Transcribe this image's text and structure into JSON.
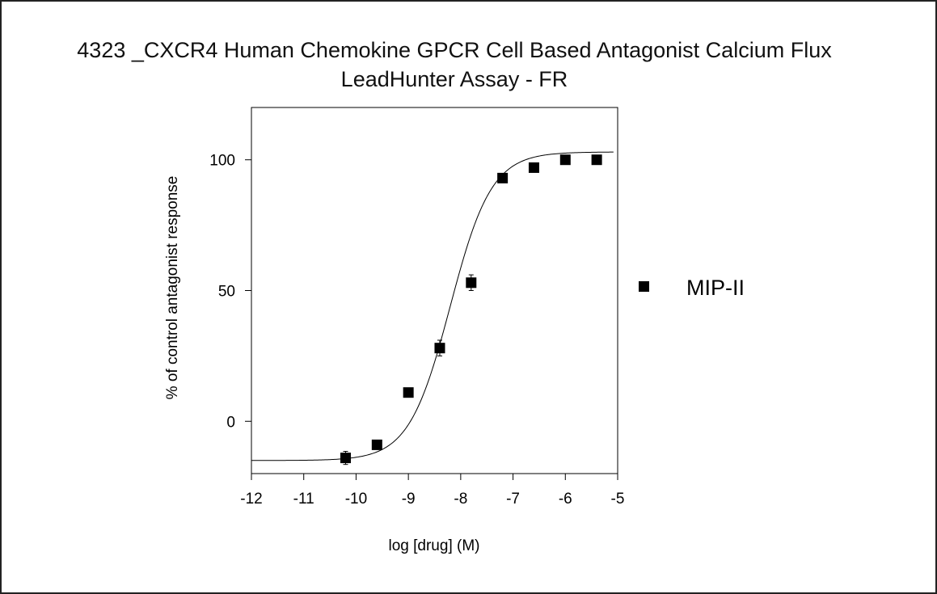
{
  "chart_data": {
    "type": "scatter",
    "title_lines": [
      "4323 _CXCR4 Human Chemokine GPCR Cell Based Antagonist Calcium Flux",
      "LeadHunter Assay - FR"
    ],
    "xlabel": "log [drug] (M)",
    "ylabel": "% of control antagonist response",
    "xlim": [
      -12,
      -5
    ],
    "ylim": [
      -20,
      120
    ],
    "x_ticks": [
      "-12",
      "-11",
      "-10",
      "-9",
      "-8",
      "-7",
      "-6",
      "-5"
    ],
    "y_ticks": [
      "0",
      "50",
      "100"
    ],
    "grid": false,
    "legend_position": "right",
    "series": [
      {
        "name": "MIP-II",
        "marker": "square",
        "color": "#000000",
        "x": [
          -10.2,
          -9.6,
          -9.0,
          -8.4,
          -7.8,
          -7.2,
          -6.6,
          -6.0,
          -5.4
        ],
        "y": [
          -14,
          -9,
          11,
          28,
          53,
          93,
          97,
          100,
          100
        ],
        "error": [
          2.5,
          1.0,
          1.0,
          3.0,
          3.0,
          1.0,
          1.0,
          1.0,
          1.0
        ]
      }
    ],
    "fit_curve": {
      "model": "four-parameter logistic",
      "bottom": -15,
      "top": 103,
      "log_ic50": -8.2,
      "hill_slope": 1.1
    }
  }
}
